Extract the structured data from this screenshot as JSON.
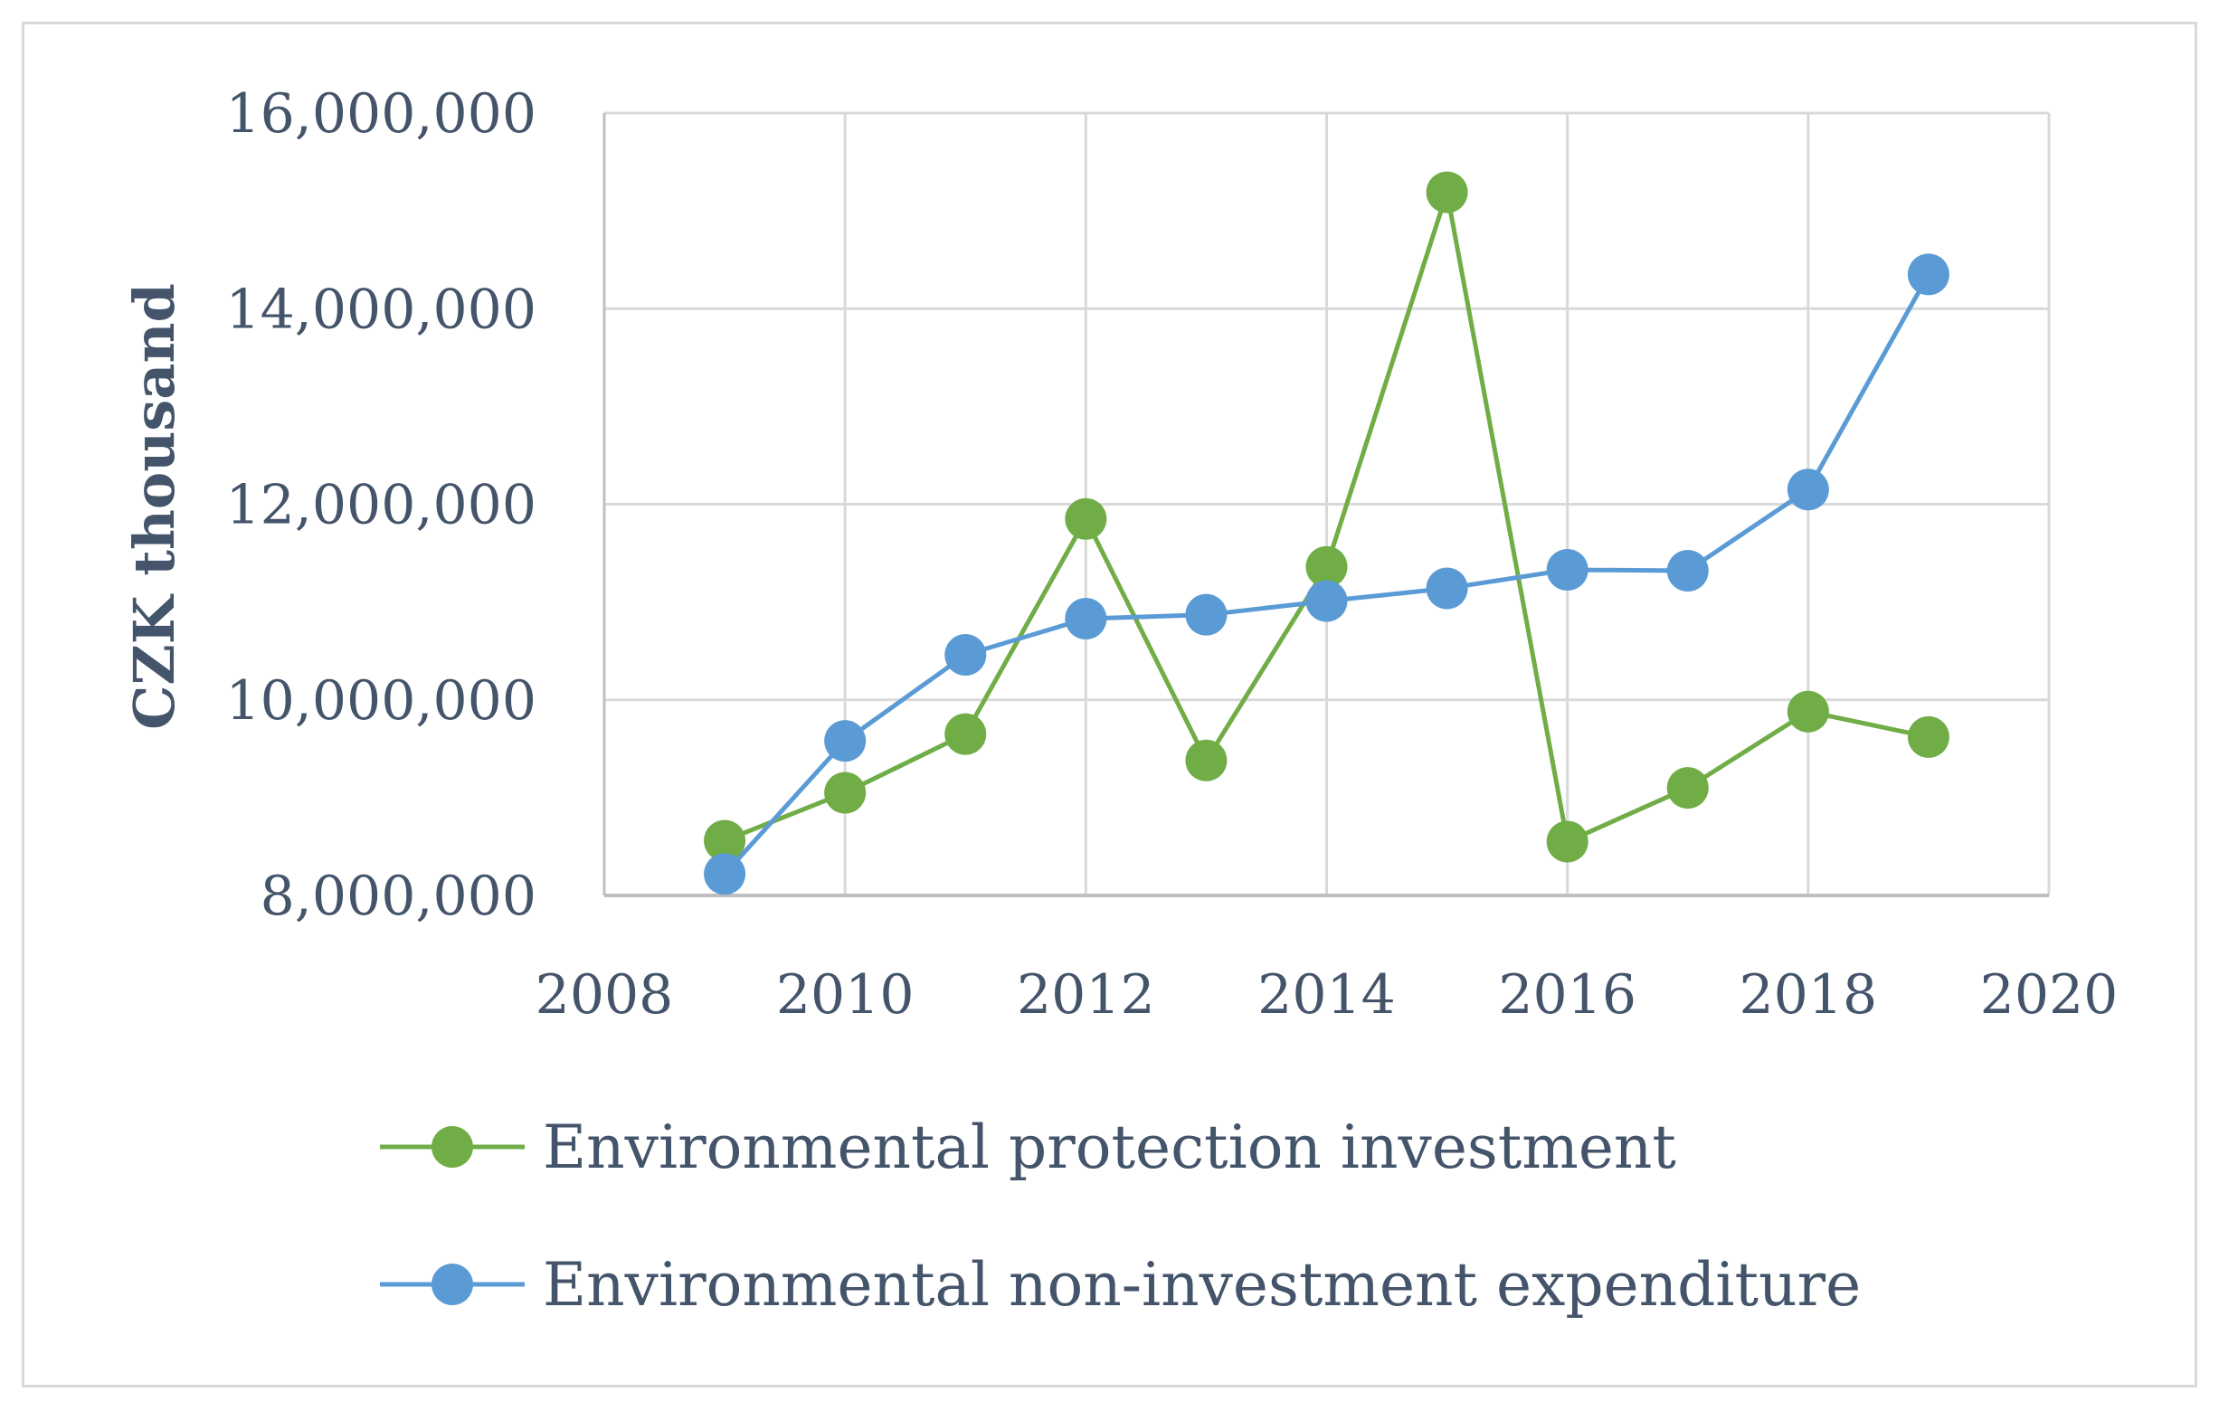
{
  "chart_data": {
    "type": "scatter",
    "title": "",
    "xlabel": "",
    "ylabel": "CZK thousand",
    "xlim": [
      2008,
      2020
    ],
    "ylim": [
      8000000,
      16000000
    ],
    "x_ticks": [
      2008,
      2010,
      2012,
      2014,
      2016,
      2018,
      2020
    ],
    "x_tick_labels": [
      "2008",
      "2010",
      "2012",
      "2014",
      "2016",
      "2018",
      "2020"
    ],
    "y_ticks": [
      8000000,
      10000000,
      12000000,
      14000000,
      16000000
    ],
    "y_tick_labels": [
      "8,000,000",
      "10,000,000",
      "12,000,000",
      "14,000,000",
      "16,000,000"
    ],
    "grid": true,
    "legend_position": "bottom",
    "series": [
      {
        "name": "Environmental protection investment",
        "color": "#70ad47",
        "x": [
          2009,
          2010,
          2011,
          2012,
          2013,
          2014,
          2015,
          2016,
          2017,
          2018,
          2019
        ],
        "values": [
          8560000,
          9050000,
          9650000,
          11850000,
          9380000,
          11360000,
          15190000,
          8550000,
          9100000,
          9880000,
          9620000
        ]
      },
      {
        "name": "Environmental non-investment expenditure",
        "color": "#5b9bd5",
        "x": [
          2009,
          2010,
          2011,
          2012,
          2013,
          2014,
          2015,
          2016,
          2017,
          2018,
          2019
        ],
        "values": [
          8220000,
          9580000,
          10460000,
          10830000,
          10870000,
          11010000,
          11140000,
          11330000,
          11320000,
          12150000,
          14350000
        ]
      }
    ]
  }
}
